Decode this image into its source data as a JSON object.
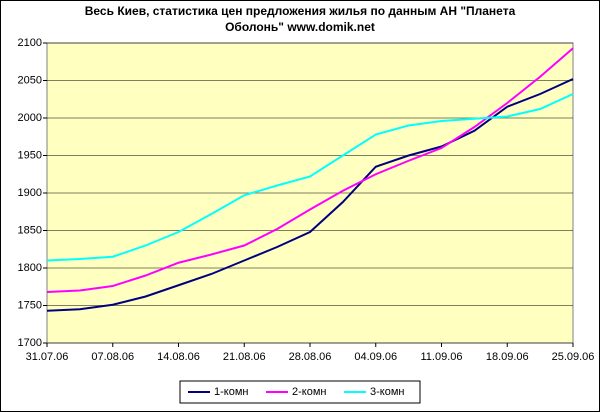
{
  "chart_data": {
    "type": "line",
    "title": [
      "Весь Киев, статистика цен предложения жилья по данным АН \"Планета",
      "Оболонь\" www.domik.net"
    ],
    "categories": [
      "31.07.06",
      null,
      "07.08.06",
      null,
      "14.08.06",
      null,
      "21.08.06",
      null,
      "28.08.06",
      null,
      "04.09.06",
      null,
      "11.09.06",
      null,
      "18.09.06",
      null,
      "25.09.06"
    ],
    "series": [
      {
        "name": "1-комн",
        "color": "#000080",
        "values": [
          1743,
          1745,
          1751,
          1762,
          1777,
          1792,
          1810,
          1828,
          1848,
          1888,
          1935,
          1950,
          1962,
          1983,
          2015,
          2032,
          2052
        ]
      },
      {
        "name": "2-комн",
        "color": "#ff00ff",
        "values": [
          1768,
          1770,
          1776,
          1790,
          1807,
          1818,
          1830,
          1852,
          1878,
          1903,
          1925,
          1943,
          1960,
          1988,
          2020,
          2055,
          2093
        ]
      },
      {
        "name": "3-комн",
        "color": "#00ffff",
        "values": [
          1810,
          1812,
          1815,
          1830,
          1848,
          1872,
          1897,
          1910,
          1922,
          1950,
          1978,
          1990,
          1996,
          1999,
          2002,
          2012,
          2032
        ]
      }
    ],
    "ylim": [
      1700,
      2100
    ],
    "yticks": [
      1700,
      1750,
      1800,
      1850,
      1900,
      1950,
      2000,
      2050,
      2100
    ],
    "grid": true,
    "legend": "bottom",
    "plot_background": "#ffffc0"
  }
}
